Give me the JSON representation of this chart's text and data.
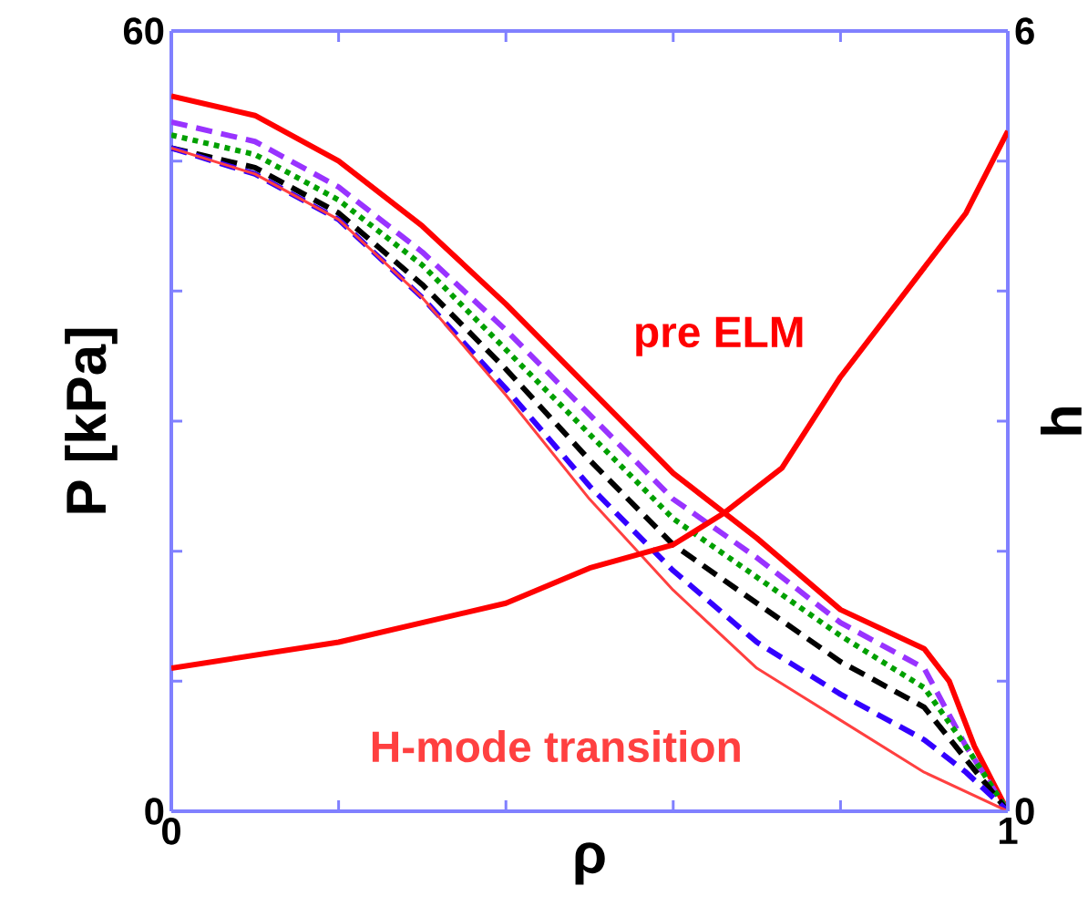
{
  "chart_data": {
    "type": "line",
    "xlabel": "ρ",
    "ylabel": "P [kPa]",
    "y2label": "h",
    "xlim": [
      0,
      1
    ],
    "ylim": [
      0,
      60
    ],
    "y2lim": [
      0,
      6
    ],
    "xticks": [
      0,
      {
        "value": 0.2,
        "label": null
      },
      {
        "value": 0.4,
        "label": null
      },
      {
        "value": 0.6,
        "label": null
      },
      {
        "value": 0.8,
        "label": null
      },
      1
    ],
    "yticks": [
      0,
      {
        "value": 10,
        "label": null
      },
      {
        "value": 20,
        "label": null
      },
      {
        "value": 30,
        "label": null
      },
      {
        "value": 40,
        "label": null
      },
      {
        "value": 50,
        "label": null
      },
      60
    ],
    "y2ticks": [
      0,
      {
        "value": 1,
        "label": null
      },
      {
        "value": 2,
        "label": null
      },
      {
        "value": 3,
        "label": null
      },
      {
        "value": 4,
        "label": null
      },
      {
        "value": 5,
        "label": null
      },
      6
    ],
    "grid": false,
    "legend": false,
    "marker": "none",
    "series": [
      {
        "name": "pre ELM",
        "color": "#ff0000",
        "line_style": "solid",
        "x": [
          0,
          0.1,
          0.2,
          0.3,
          0.4,
          0.5,
          0.6,
          0.7,
          0.8,
          0.9,
          0.93,
          0.96,
          1
        ],
        "values": [
          55,
          53.5,
          50,
          45,
          39,
          32.5,
          26,
          21,
          15.5,
          12.5,
          10,
          5,
          0
        ]
      },
      {
        "color": "#9933ff",
        "line_style": "dashed",
        "x": [
          0,
          0.1,
          0.2,
          0.3,
          0.4,
          0.5,
          0.6,
          0.7,
          0.8,
          0.9,
          0.95,
          1
        ],
        "values": [
          53,
          51.5,
          48,
          43,
          37,
          30.5,
          24,
          19.5,
          14.5,
          11,
          5,
          0
        ]
      },
      {
        "color": "#00a000",
        "line_style": "dotted",
        "x": [
          0,
          0.1,
          0.2,
          0.3,
          0.4,
          0.5,
          0.6,
          0.7,
          0.8,
          0.9,
          0.95,
          1
        ],
        "values": [
          52,
          50.5,
          47,
          42,
          35.5,
          29,
          22.5,
          18,
          13.5,
          9.5,
          5,
          0
        ]
      },
      {
        "color": "#000000",
        "line_style": "dashed",
        "x": [
          0,
          0.1,
          0.2,
          0.3,
          0.4,
          0.5,
          0.6,
          0.7,
          0.8,
          0.9,
          0.95,
          1
        ],
        "values": [
          51,
          49.5,
          46,
          40.5,
          34,
          27,
          20.5,
          16,
          11.5,
          8,
          4,
          0
        ]
      },
      {
        "color": "#3300ff",
        "line_style": "dashed",
        "x": [
          0,
          0.1,
          0.2,
          0.3,
          0.4,
          0.5,
          0.6,
          0.7,
          0.8,
          0.9,
          0.95,
          1
        ],
        "values": [
          51,
          49,
          45.5,
          39.5,
          32.5,
          25,
          18.5,
          13,
          9,
          5.5,
          3,
          0
        ]
      },
      {
        "name": "H-mode transition",
        "color": "#ff4040",
        "line_style": "solid",
        "x": [
          0,
          0.1,
          0.2,
          0.3,
          0.4,
          0.5,
          0.6,
          0.7,
          0.8,
          0.9,
          1
        ],
        "values": [
          51,
          49,
          45.5,
          39.5,
          32,
          24,
          17,
          11,
          7,
          3,
          0
        ]
      },
      {
        "color": "#ff0000",
        "line_style": "solid",
        "axis": "y2",
        "x": [
          0,
          0.2,
          0.4,
          0.5,
          0.6,
          0.66,
          0.73,
          0.8,
          0.9,
          0.95,
          1
        ],
        "values": [
          1.1,
          1.3,
          1.6,
          1.87,
          2.05,
          2.29,
          2.64,
          3.34,
          4.18,
          4.6,
          5.23
        ]
      }
    ]
  }
}
